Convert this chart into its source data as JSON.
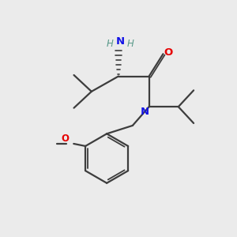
{
  "bg_color": "#ebebeb",
  "bond_color": "#3d3d3d",
  "N_color": "#1414e6",
  "O_color": "#e60000",
  "H_color": "#5a9a8a",
  "figsize": [
    3.0,
    3.0
  ],
  "dpi": 100,
  "xlim": [
    0,
    10
  ],
  "ylim": [
    0,
    10
  ]
}
